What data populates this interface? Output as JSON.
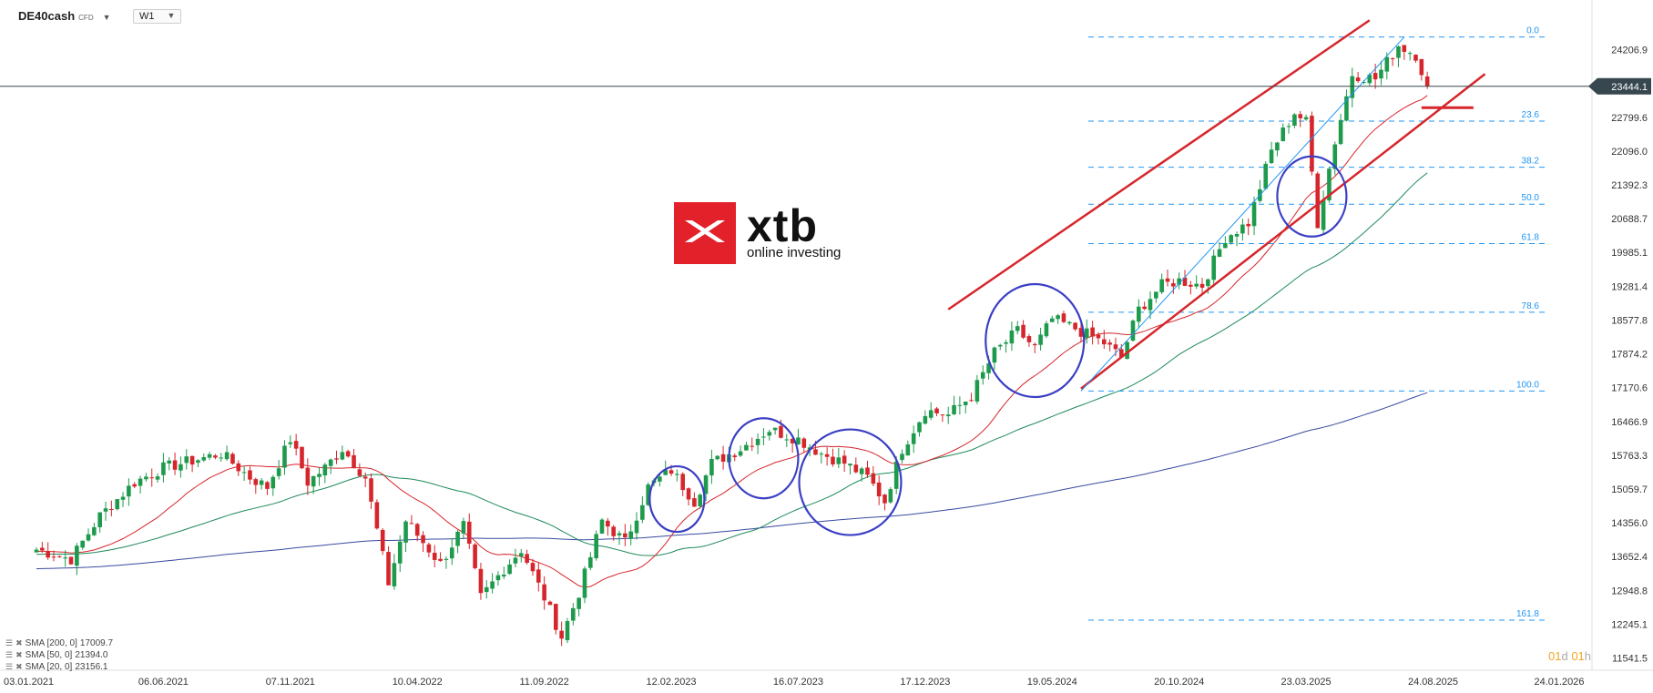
{
  "toolbar": {
    "symbol": "DE40cash",
    "symbol_tag": "CFD",
    "timeframe": "W1"
  },
  "logo": {
    "word": "xtb",
    "tagline": "online investing"
  },
  "countdown": {
    "d": "01",
    "d_unit": "d",
    "h": "01",
    "h_unit": "h"
  },
  "legend": [
    {
      "label": "SMA [200, 0]",
      "value": "17009.7",
      "color": "#3a4aa0"
    },
    {
      "label": "SMA [50, 0]",
      "value": "21394.0",
      "color": "#1e8a5a"
    },
    {
      "label": "SMA [20, 0]",
      "value": "23156.1",
      "color": "#d6262c"
    }
  ],
  "colors": {
    "up": "#1e9a4c",
    "down": "#d6262c",
    "fib": "#2196f3",
    "circle": "#3a3fc4",
    "price_line": "#37474f"
  },
  "chart_data": {
    "type": "candlestick",
    "instrument": "DE40cash",
    "timeframe": "W1",
    "ylim": [
      11400,
      24900
    ],
    "y_ticks": [
      24206.9,
      22799.6,
      22096.0,
      21392.3,
      20688.7,
      19985.1,
      19281.4,
      18577.8,
      17874.2,
      17170.6,
      16466.9,
      15763.3,
      15059.7,
      14356.0,
      13652.4,
      12948.8,
      12245.1,
      11541.5
    ],
    "x_ticks": [
      {
        "date": "2021-01-03",
        "label": "03.01.2021"
      },
      {
        "date": "2021-06-06",
        "label": "06.06.2021"
      },
      {
        "date": "2021-11-07",
        "label": "07.11.2021"
      },
      {
        "date": "2022-04-10",
        "label": "10.04.2022"
      },
      {
        "date": "2022-09-11",
        "label": "11.09.2022"
      },
      {
        "date": "2023-02-12",
        "label": "12.02.2023"
      },
      {
        "date": "2023-07-16",
        "label": "16.07.2023"
      },
      {
        "date": "2023-12-17",
        "label": "17.12.2023"
      },
      {
        "date": "2024-05-19",
        "label": "19.05.2024"
      },
      {
        "date": "2024-10-20",
        "label": "20.10.2024"
      },
      {
        "date": "2025-03-23",
        "label": "23.03.2025"
      },
      {
        "date": "2025-08-24",
        "label": "24.08.2025"
      },
      {
        "date": "2026-01-24",
        "label": "24.01.2026"
      }
    ],
    "current_price": {
      "value": 23444.1,
      "label": "23444.1"
    },
    "price_path": [
      [
        "2021-01-03",
        13800
      ],
      [
        "2021-02-14",
        13600
      ],
      [
        "2021-03-21",
        14500
      ],
      [
        "2021-05-02",
        15200
      ],
      [
        "2021-06-06",
        15500
      ],
      [
        "2021-08-15",
        15800
      ],
      [
        "2021-09-19",
        15300
      ],
      [
        "2021-10-10",
        15100
      ],
      [
        "2021-11-07",
        16100
      ],
      [
        "2021-11-28",
        15200
      ],
      [
        "2021-12-19",
        15500
      ],
      [
        "2022-01-09",
        15900
      ],
      [
        "2022-02-06",
        15300
      ],
      [
        "2022-03-06",
        13100
      ],
      [
        "2022-03-27",
        14400
      ],
      [
        "2022-04-10",
        14100
      ],
      [
        "2022-05-08",
        13500
      ],
      [
        "2022-06-05",
        14300
      ],
      [
        "2022-06-26",
        12800
      ],
      [
        "2022-07-24",
        13400
      ],
      [
        "2022-08-14",
        13800
      ],
      [
        "2022-09-11",
        12800
      ],
      [
        "2022-10-02",
        11980
      ],
      [
        "2022-10-23",
        12900
      ],
      [
        "2022-11-20",
        14400
      ],
      [
        "2022-12-18",
        13950
      ],
      [
        "2023-01-15",
        15100
      ],
      [
        "2023-02-12",
        15450
      ],
      [
        "2023-03-12",
        14800
      ],
      [
        "2023-04-02",
        15600
      ],
      [
        "2023-05-07",
        15900
      ],
      [
        "2023-06-11",
        16300
      ],
      [
        "2023-07-16",
        16100
      ],
      [
        "2023-08-13",
        15800
      ],
      [
        "2023-09-10",
        15600
      ],
      [
        "2023-10-08",
        15300
      ],
      [
        "2023-10-29",
        14800
      ],
      [
        "2023-11-19",
        15900
      ],
      [
        "2023-12-17",
        16700
      ],
      [
        "2024-01-14",
        16600
      ],
      [
        "2024-02-11",
        17000
      ],
      [
        "2024-03-10",
        17900
      ],
      [
        "2024-04-07",
        18350
      ],
      [
        "2024-04-28",
        18000
      ],
      [
        "2024-05-19",
        18600
      ],
      [
        "2024-06-16",
        18400
      ],
      [
        "2024-07-21",
        18100
      ],
      [
        "2024-08-11",
        17800
      ],
      [
        "2024-09-01",
        18800
      ],
      [
        "2024-09-29",
        19300
      ],
      [
        "2024-10-20",
        19400
      ],
      [
        "2024-11-17",
        19300
      ],
      [
        "2024-12-15",
        20300
      ],
      [
        "2025-01-12",
        20600
      ],
      [
        "2025-02-09",
        22100
      ],
      [
        "2025-03-09",
        22900
      ],
      [
        "2025-03-23",
        22700
      ],
      [
        "2025-04-06",
        20600
      ],
      [
        "2025-04-27",
        22300
      ],
      [
        "2025-05-18",
        23700
      ],
      [
        "2025-06-15",
        23600
      ],
      [
        "2025-07-13",
        24300
      ],
      [
        "2025-08-03",
        24100
      ],
      [
        "2025-08-17",
        23450
      ]
    ],
    "series": [
      {
        "name": "SMA [20, 0]",
        "value": 23156.1
      },
      {
        "name": "SMA [50, 0]",
        "value": 21394.0
      },
      {
        "name": "SMA [200, 0]",
        "value": 17009.7
      }
    ],
    "fibonacci": [
      {
        "label": "0.0",
        "price": 24470
      },
      {
        "label": "23.6",
        "price": 22720
      },
      {
        "label": "38.2",
        "price": 21760
      },
      {
        "label": "50.0",
        "price": 20990
      },
      {
        "label": "61.8",
        "price": 20170
      },
      {
        "label": "78.6",
        "price": 18740
      },
      {
        "label": "100.0",
        "price": 17100
      },
      {
        "label": "161.8",
        "price": 12330
      }
    ],
    "channel": {
      "upper": [
        [
          "2024-01-14",
          18800
        ],
        [
          "2025-06-08",
          24820
        ]
      ],
      "lower": [
        [
          "2024-06-23",
          17150
        ],
        [
          "2025-10-26",
          23700
        ]
      ],
      "support_mark": {
        "from": "2025-08-10",
        "to": "2025-10-12",
        "price": 23000
      }
    },
    "circles": [
      {
        "center": [
          "2023-02-19",
          14850
        ]
      },
      {
        "center": [
          "2023-06-04",
          15700
        ]
      },
      {
        "center": [
          "2023-09-17",
          15200
        ]
      },
      {
        "center": [
          "2024-04-28",
          18150
        ]
      },
      {
        "center": [
          "2025-03-30",
          21150
        ]
      }
    ]
  }
}
